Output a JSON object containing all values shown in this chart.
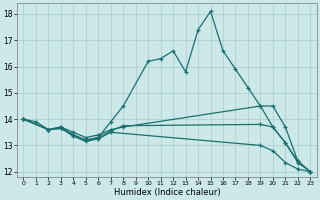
{
  "xlabel": "Humidex (Indice chaleur)",
  "ylabel": "",
  "bg_color": "#cce8e8",
  "grid_color": "#aacccc",
  "line_color": "#1a7070",
  "xlim": [
    -0.5,
    23.5
  ],
  "ylim": [
    11.8,
    18.4
  ],
  "yticks": [
    12,
    13,
    14,
    15,
    16,
    17,
    18
  ],
  "xticks": [
    0,
    1,
    2,
    3,
    4,
    5,
    6,
    7,
    8,
    9,
    10,
    11,
    12,
    13,
    14,
    15,
    16,
    17,
    18,
    19,
    20,
    21,
    22,
    23
  ],
  "series": [
    {
      "x": [
        0,
        1,
        2,
        3,
        4,
        5,
        6,
        7,
        8,
        10,
        11,
        12,
        13,
        14,
        15,
        16,
        17,
        18,
        19,
        20,
        21,
        22,
        23
      ],
      "y": [
        14.0,
        13.9,
        13.6,
        13.7,
        13.4,
        13.2,
        13.3,
        13.9,
        14.5,
        16.2,
        16.3,
        16.6,
        15.8,
        17.4,
        18.1,
        16.6,
        15.9,
        15.2,
        14.5,
        13.7,
        13.1,
        12.4,
        12.0
      ]
    },
    {
      "x": [
        0,
        2,
        3,
        4,
        5,
        6,
        7,
        8,
        19,
        20,
        21,
        22,
        23
      ],
      "y": [
        14.0,
        13.6,
        13.7,
        13.5,
        13.3,
        13.4,
        13.6,
        13.7,
        14.5,
        14.5,
        13.7,
        12.4,
        12.0
      ]
    },
    {
      "x": [
        0,
        2,
        3,
        4,
        5,
        6,
        7,
        8,
        19,
        20,
        21,
        22,
        23
      ],
      "y": [
        14.0,
        13.6,
        13.65,
        13.4,
        13.2,
        13.3,
        13.55,
        13.75,
        13.8,
        13.7,
        13.1,
        12.35,
        12.0
      ]
    },
    {
      "x": [
        0,
        2,
        3,
        4,
        5,
        6,
        7,
        19,
        20,
        21,
        22,
        23
      ],
      "y": [
        14.0,
        13.6,
        13.65,
        13.35,
        13.15,
        13.25,
        13.5,
        13.0,
        12.8,
        12.35,
        12.1,
        12.0
      ]
    }
  ]
}
